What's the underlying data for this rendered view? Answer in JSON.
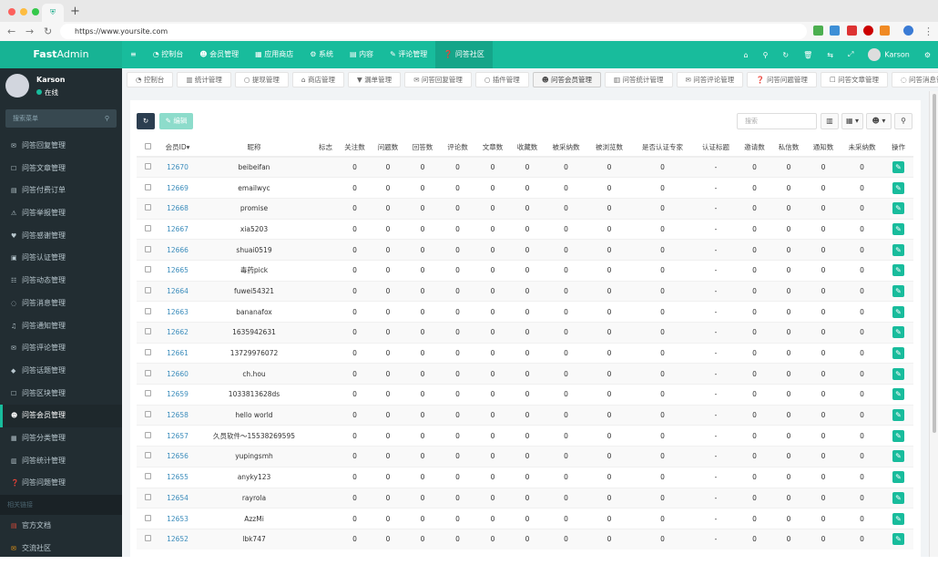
{
  "browser": {
    "url": "https://www.yoursite.com",
    "tab_icon": "shield-icon"
  },
  "header": {
    "logo_bold": "Fast",
    "logo_light": "Admin",
    "menu": [
      {
        "icon": "≡",
        "label": ""
      },
      {
        "icon": "◔",
        "label": "控制台"
      },
      {
        "icon": "☻",
        "label": "会员管理"
      },
      {
        "icon": "▦",
        "label": "应用商店"
      },
      {
        "icon": "⚙",
        "label": "系统"
      },
      {
        "icon": "▤",
        "label": "内容"
      },
      {
        "icon": "✎",
        "label": "评论管理"
      },
      {
        "icon": "❓",
        "label": "问答社区"
      }
    ],
    "right_icons": [
      "⌂",
      "⚲",
      "↻",
      "🗑",
      "⇆",
      "⤢"
    ],
    "user": "Karson"
  },
  "sidebar": {
    "user": {
      "name": "Karson",
      "status": "在线"
    },
    "search_placeholder": "搜索菜单",
    "items": [
      {
        "icon": "✉",
        "label": "问答回复管理"
      },
      {
        "icon": "☐",
        "label": "问答文章管理"
      },
      {
        "icon": "▤",
        "label": "问答付费订单"
      },
      {
        "icon": "⚠",
        "label": "问答举报管理"
      },
      {
        "icon": "♥",
        "label": "问答感谢管理"
      },
      {
        "icon": "▣",
        "label": "问答认证管理"
      },
      {
        "icon": "☷",
        "label": "问答动态管理"
      },
      {
        "icon": "◌",
        "label": "问答消息管理"
      },
      {
        "icon": "♫",
        "label": "问答通知管理"
      },
      {
        "icon": "✉",
        "label": "问答评论管理"
      },
      {
        "icon": "◆",
        "label": "问答话题管理"
      },
      {
        "icon": "☐",
        "label": "问答区块管理"
      },
      {
        "icon": "☻",
        "label": "问答会员管理",
        "active": true
      },
      {
        "icon": "▦",
        "label": "问答分类管理"
      },
      {
        "icon": "▥",
        "label": "问答统计管理"
      },
      {
        "icon": "❓",
        "label": "问答问题管理"
      }
    ],
    "section": "相关链接",
    "links": [
      {
        "icon": "▤",
        "label": "官方文档",
        "color": "#dd4b39"
      },
      {
        "icon": "✉",
        "label": "交流社区",
        "color": "#f39c12"
      }
    ]
  },
  "tabs": [
    {
      "icon": "◔",
      "label": "控制台"
    },
    {
      "icon": "▥",
      "label": "统计管理"
    },
    {
      "icon": "○",
      "label": "提现管理"
    },
    {
      "icon": "⌂",
      "label": "商店管理"
    },
    {
      "icon": "▼",
      "label": "漏单管理"
    },
    {
      "icon": "✉",
      "label": "问答回复管理"
    },
    {
      "icon": "○",
      "label": "插件管理"
    },
    {
      "icon": "☻",
      "label": "问答会员管理",
      "active": true
    },
    {
      "icon": "▥",
      "label": "问答统计管理"
    },
    {
      "icon": "✉",
      "label": "问答评论管理"
    },
    {
      "icon": "❓",
      "label": "问答问题管理"
    },
    {
      "icon": "☐",
      "label": "问答文章管理"
    },
    {
      "icon": "◌",
      "label": "问答消息管理"
    }
  ],
  "toolbar": {
    "refresh_icon": "↻",
    "edit_label": "✎ 编辑",
    "search_placeholder": "搜索",
    "columns_icon": "▥",
    "export_icon": "▦ ▾",
    "filter_icon": "☻ ▾",
    "search_icon": "⚲"
  },
  "table": {
    "columns": [
      "",
      "会员ID▾",
      "昵称",
      "标志",
      "关注数",
      "问题数",
      "回答数",
      "评论数",
      "文章数",
      "收藏数",
      "被采纳数",
      "被浏览数",
      "是否认证专家",
      "认证标题",
      "邀请数",
      "私信数",
      "通知数",
      "未采纳数",
      "操作"
    ],
    "rows": [
      [
        "12670",
        "beibeifan"
      ],
      [
        "12669",
        "emailwyc"
      ],
      [
        "12668",
        "promise"
      ],
      [
        "12667",
        "xia5203"
      ],
      [
        "12666",
        "shuai0519"
      ],
      [
        "12665",
        "毒药pick"
      ],
      [
        "12664",
        "fuwei54321"
      ],
      [
        "12663",
        "bananafox"
      ],
      [
        "12662",
        "1635942631"
      ],
      [
        "12661",
        "13729976072"
      ],
      [
        "12660",
        "ch.hou"
      ],
      [
        "12659",
        "1033813628ds"
      ],
      [
        "12658",
        "hello world"
      ],
      [
        "12657",
        "久员软件～15538269595"
      ],
      [
        "12656",
        "yupingsmh"
      ],
      [
        "12655",
        "anyky123"
      ],
      [
        "12654",
        "rayrola"
      ],
      [
        "12653",
        "AzzMi"
      ],
      [
        "12652",
        "lbk747"
      ]
    ],
    "zero": "0",
    "dash": "-",
    "edit_icon": "✎"
  },
  "colors": {
    "accent": "#18bc9c",
    "sidebar": "#222d32"
  }
}
